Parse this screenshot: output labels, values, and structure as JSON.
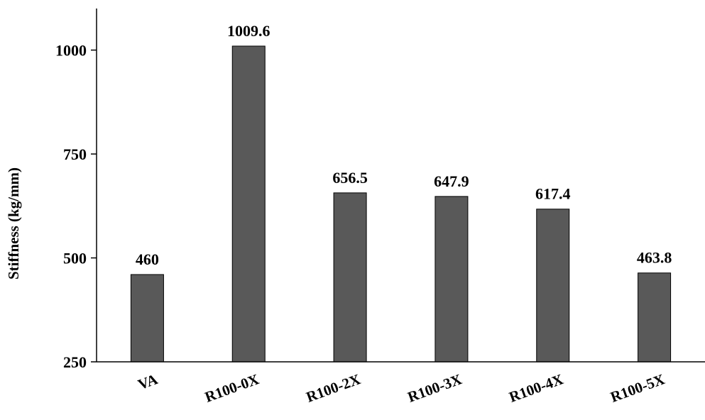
{
  "chart_data": {
    "type": "bar",
    "title": "",
    "xlabel": "",
    "ylabel": "Stiffness (kg/mm)",
    "categories": [
      "VA",
      "R100-0X",
      "R100-2X",
      "R100-3X",
      "R100-4X",
      "R100-5X"
    ],
    "values": [
      460,
      1009.6,
      656.5,
      647.9,
      617.4,
      463.8
    ],
    "data_labels": [
      "460",
      "1009.6",
      "656.5",
      "647.9",
      "617.4",
      "463.8"
    ],
    "ylim": [
      250,
      1100
    ],
    "yticks": [
      250,
      500,
      750,
      1000
    ],
    "grid": false,
    "legend": "none",
    "bar_color": "#595959",
    "bar_edge_color": "#000000"
  }
}
